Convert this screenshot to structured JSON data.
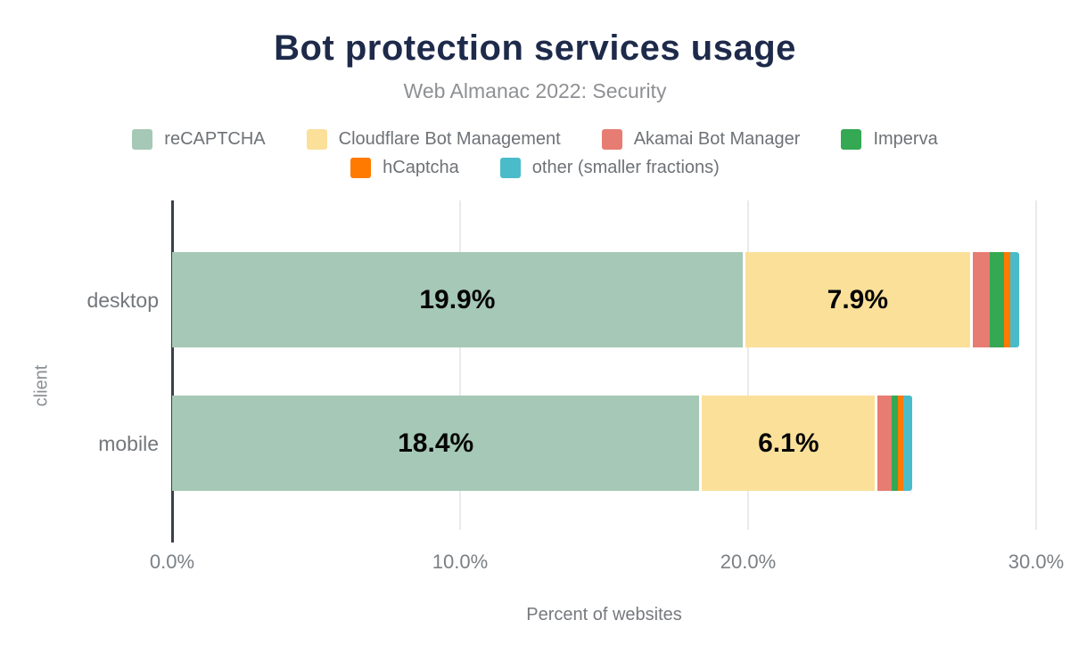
{
  "header": {
    "title": "Bot protection services usage",
    "subtitle": "Web Almanac 2022: Security"
  },
  "chart_data": {
    "type": "bar",
    "orientation": "horizontal",
    "stacked": true,
    "title": "Bot protection services usage",
    "subtitle": "Web Almanac 2022: Security",
    "categories": [
      "desktop",
      "mobile"
    ],
    "series": [
      {
        "name": "reCAPTCHA",
        "color": "#A6C8B6",
        "values": [
          19.9,
          18.4
        ]
      },
      {
        "name": "Cloudflare Bot Management",
        "color": "#FBE09A",
        "values": [
          7.9,
          6.1
        ]
      },
      {
        "name": "Akamai Bot Manager",
        "color": "#E77C72",
        "values": [
          0.6,
          0.5
        ]
      },
      {
        "name": "Imperva",
        "color": "#34A853",
        "values": [
          0.5,
          0.2
        ]
      },
      {
        "name": "hCaptcha",
        "color": "#FF7A00",
        "values": [
          0.2,
          0.2
        ]
      },
      {
        "name": "other (smaller fractions)",
        "color": "#4ABCC9",
        "values": [
          0.3,
          0.3
        ]
      }
    ],
    "value_labels": [
      [
        "19.9%",
        "7.9%"
      ],
      [
        "18.4%",
        "6.1%"
      ]
    ],
    "xlabel": "Percent of websites",
    "ylabel": "client",
    "xlim": [
      0,
      30
    ],
    "x_ticks": [
      {
        "label": "0.0%",
        "value": 0
      },
      {
        "label": "10.0%",
        "value": 10
      },
      {
        "label": "20.0%",
        "value": 20
      },
      {
        "label": "30.0%",
        "value": 30
      }
    ],
    "legend_rows": [
      [
        "reCAPTCHA",
        "Cloudflare Bot Management",
        "Akamai Bot Manager",
        "Imperva"
      ],
      [
        "hCaptcha",
        "other (smaller fractions)"
      ]
    ],
    "legend_position": "top",
    "grid": "vertical"
  },
  "style": {
    "title_color": "#1E2A4A",
    "subtitle_color": "#8E9093",
    "axis_line_color": "#3B4045",
    "gridline_color": "#E9EBEB",
    "label_text_color": "#73777B"
  }
}
